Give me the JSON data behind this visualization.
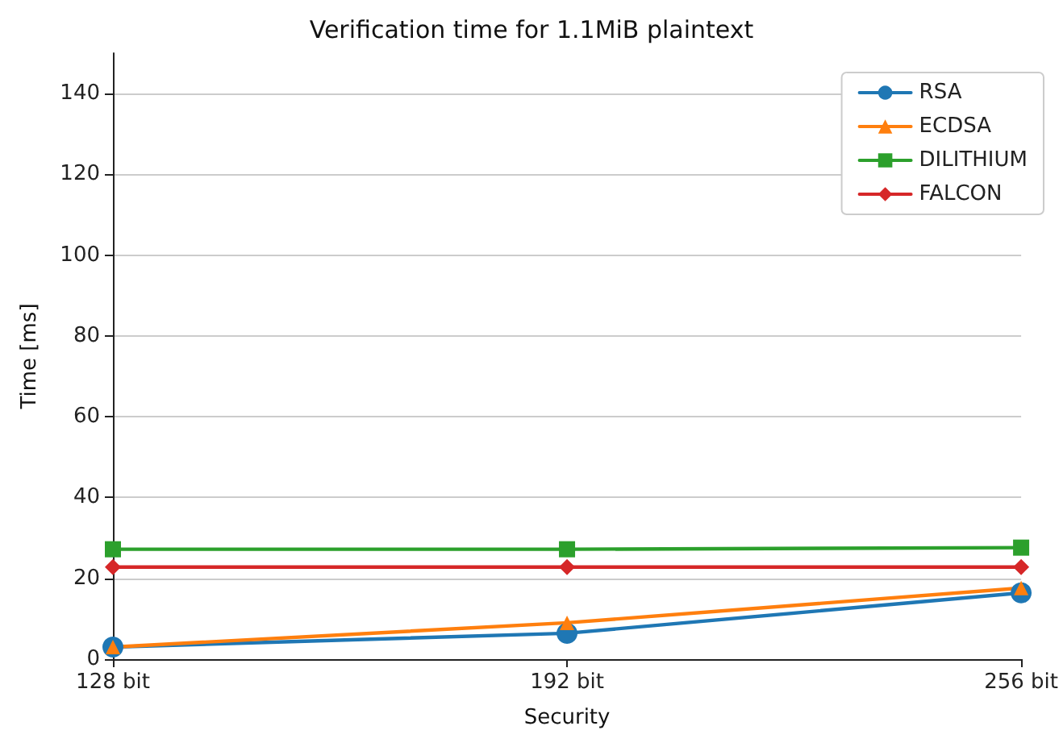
{
  "chart_data": {
    "type": "line",
    "title": "Verification time for 1.1MiB plaintext",
    "xlabel": "Security",
    "ylabel": "Time [ms]",
    "categories": [
      "128 bit",
      "192 bit",
      "256 bit"
    ],
    "series": [
      {
        "name": "RSA",
        "color": "#1f77b4",
        "marker": "circle",
        "values": [
          3,
          6.4,
          16.4
        ]
      },
      {
        "name": "ECDSA",
        "color": "#ff7f0e",
        "marker": "triangle",
        "values": [
          3,
          9,
          17.6
        ]
      },
      {
        "name": "DILITHIUM",
        "color": "#2ca02c",
        "marker": "square",
        "values": [
          27.2,
          27.2,
          27.6
        ]
      },
      {
        "name": "FALCON",
        "color": "#d62728",
        "marker": "diamond",
        "values": [
          22.8,
          22.8,
          22.8
        ]
      }
    ],
    "ylim": [
      0,
      150
    ],
    "yticks": [
      0,
      20,
      40,
      60,
      80,
      100,
      120,
      140
    ],
    "grid": "y",
    "legend": "top right"
  }
}
